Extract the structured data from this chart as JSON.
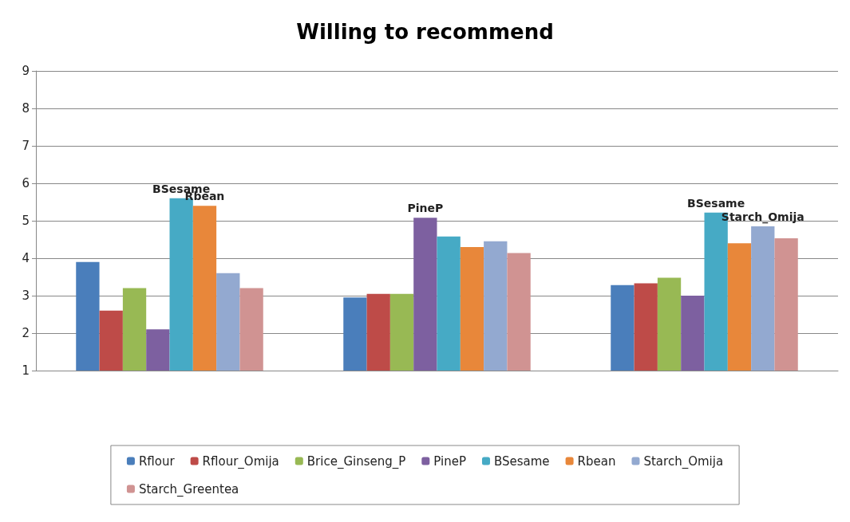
{
  "chart_data": {
    "type": "bar",
    "title": "Willing to recommend",
    "categories": [
      null,
      null,
      null
    ],
    "series": [
      {
        "name": "Rflour",
        "color": "#4a7ebb",
        "values": [
          3.9,
          2.95,
          3.28
        ]
      },
      {
        "name": "Rflour_Omija",
        "color": "#be4b48",
        "values": [
          2.6,
          3.05,
          3.33
        ]
      },
      {
        "name": "Brice_Ginseng_P",
        "color": "#98b954",
        "values": [
          3.2,
          3.05,
          3.48
        ]
      },
      {
        "name": "PineP",
        "color": "#7d60a0",
        "values": [
          2.1,
          5.08,
          3.0
        ],
        "value_labels": [
          null,
          "PineP",
          null
        ]
      },
      {
        "name": "BSesame",
        "color": "#46aac5",
        "values": [
          5.6,
          4.58,
          5.22
        ],
        "value_labels": [
          "BSesame",
          null,
          "BSesame"
        ]
      },
      {
        "name": "Rbean",
        "color": "#e8873a",
        "values": [
          5.4,
          4.3,
          4.4
        ],
        "value_labels": [
          "Rbean",
          null,
          null
        ]
      },
      {
        "name": "Starch_Omija",
        "color": "#93a9d0",
        "values": [
          3.6,
          4.45,
          4.85
        ],
        "value_labels": [
          null,
          null,
          "Starch_Omija"
        ]
      },
      {
        "name": "Starch_Greentea",
        "color": "#d09392",
        "values": [
          3.2,
          4.14,
          4.53
        ]
      }
    ],
    "ylim": [
      1,
      9
    ],
    "yticks": [
      1,
      2,
      3,
      4,
      5,
      6,
      7,
      8,
      9
    ],
    "grid": "y",
    "legend": "bottom"
  }
}
